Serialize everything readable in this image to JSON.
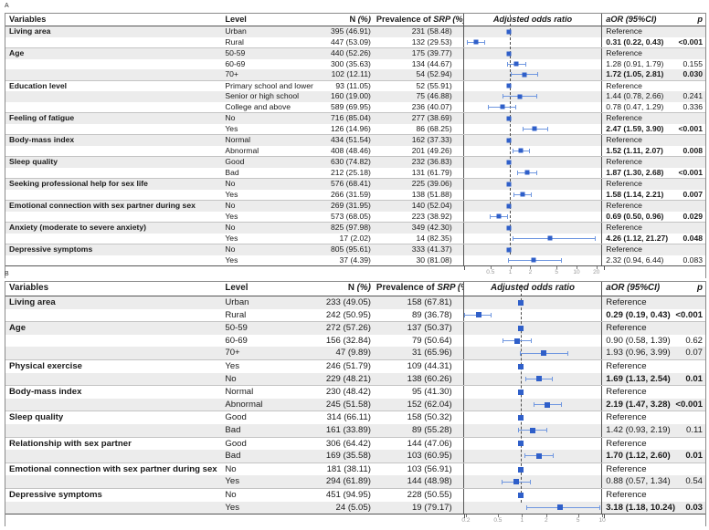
{
  "figure": {
    "panel_a_label": "A",
    "panel_b_label": "B"
  },
  "colors": {
    "marker": "#2f5fc9",
    "ci_line": "#6f97e0",
    "row_shade": "#ececec",
    "reference_line": "#4d4d4d",
    "tick_text": "#999999"
  },
  "headers": {
    "variables": [
      {
        "t": "Variables"
      }
    ],
    "level": [
      {
        "t": "Level"
      }
    ],
    "n": [
      {
        "t": "N "
      },
      {
        "t": "(%)",
        "i": true
      }
    ],
    "prevalence": [
      {
        "t": "Prevalence of "
      },
      {
        "t": "SRP (%)",
        "i": true
      }
    ],
    "plot": [
      {
        "t": "Adjusted odds ratio",
        "i": true
      }
    ],
    "aor": [
      {
        "t": "aOR (95%CI)",
        "i": true
      }
    ],
    "p": [
      {
        "t": "p",
        "i": true
      }
    ]
  },
  "chart_data": [
    {
      "type": "forest",
      "panel": "A",
      "title": "Adjusted odds ratio",
      "axis": {
        "scale": "log",
        "min": 0.2,
        "max": 26,
        "ref_line": 1,
        "ticks": [
          {
            "label": "0.5",
            "v": 0.5
          },
          {
            "label": "1",
            "v": 1
          },
          {
            "label": "2",
            "v": 2
          },
          {
            "label": "5",
            "v": 5
          },
          {
            "label": "10",
            "v": 10
          },
          {
            "label": "20",
            "v": 20
          }
        ]
      },
      "rows": [
        {
          "variable": "Living area",
          "level": "Urban",
          "n": "395 (46.91)",
          "prev": "231 (58.48)",
          "aor": "Reference",
          "p": "",
          "ref": true,
          "or": 1,
          "lo": null,
          "hi": null,
          "sig": false
        },
        {
          "variable": "",
          "level": "Rural",
          "n": "447 (53.09)",
          "prev": "132 (29.53)",
          "aor": "0.31 (0.22, 0.43)",
          "p": "<0.001",
          "ref": false,
          "or": 0.31,
          "lo": 0.22,
          "hi": 0.43,
          "sig": true
        },
        {
          "variable": "Age",
          "level": "50-59",
          "n": "440 (52.26)",
          "prev": "175 (39.77)",
          "aor": "Reference",
          "p": "",
          "ref": true,
          "or": 1,
          "lo": null,
          "hi": null,
          "sig": false
        },
        {
          "variable": "",
          "level": "60-69",
          "n": "300 (35.63)",
          "prev": "134 (44.67)",
          "aor": "1.28 (0.91, 1.79)",
          "p": "0.155",
          "ref": false,
          "or": 1.28,
          "lo": 0.91,
          "hi": 1.79,
          "sig": false
        },
        {
          "variable": "",
          "level": "70+",
          "n": "102 (12.11)",
          "prev": "54 (52.94)",
          "aor": "1.72 (1.05, 2.81)",
          "p": "0.030",
          "ref": false,
          "or": 1.72,
          "lo": 1.05,
          "hi": 2.81,
          "sig": true
        },
        {
          "variable": "Education level",
          "level": "Primary school and lower",
          "n": "93 (11.05)",
          "prev": "52 (55.91)",
          "aor": "Reference",
          "p": "",
          "ref": true,
          "or": 1,
          "lo": null,
          "hi": null,
          "sig": false
        },
        {
          "variable": "",
          "level": "Senior or high school",
          "n": "160 (19.00)",
          "prev": "75 (46.88)",
          "aor": "1.44 (0.78, 2.66)",
          "p": "0.241",
          "ref": false,
          "or": 1.44,
          "lo": 0.78,
          "hi": 2.66,
          "sig": false
        },
        {
          "variable": "",
          "level": "College and above",
          "n": "589 (69.95)",
          "prev": "236 (40.07)",
          "aor": "0.78 (0.47, 1.29)",
          "p": "0.336",
          "ref": false,
          "or": 0.78,
          "lo": 0.47,
          "hi": 1.29,
          "sig": false
        },
        {
          "variable": "Feeling of fatigue",
          "level": "No",
          "n": "716 (85.04)",
          "prev": "277 (38.69)",
          "aor": "Reference",
          "p": "",
          "ref": true,
          "or": 1,
          "lo": null,
          "hi": null,
          "sig": false
        },
        {
          "variable": "",
          "level": "Yes",
          "n": "126 (14.96)",
          "prev": "86 (68.25)",
          "aor": "2.47 (1.59, 3.90)",
          "p": "<0.001",
          "ref": false,
          "or": 2.47,
          "lo": 1.59,
          "hi": 3.9,
          "sig": true
        },
        {
          "variable": "Body-mass index",
          "level": "Normal",
          "n": "434 (51.54)",
          "prev": "162 (37.33)",
          "aor": "Reference",
          "p": "",
          "ref": true,
          "or": 1,
          "lo": null,
          "hi": null,
          "sig": false
        },
        {
          "variable": "",
          "level": "Abnormal",
          "n": "408 (48.46)",
          "prev": "201 (49.26)",
          "aor": "1.52 (1.11, 2.07)",
          "p": "0.008",
          "ref": false,
          "or": 1.52,
          "lo": 1.11,
          "hi": 2.07,
          "sig": true
        },
        {
          "variable": "Sleep quality",
          "level": "Good",
          "n": "630 (74.82)",
          "prev": "232 (36.83)",
          "aor": "Reference",
          "p": "",
          "ref": true,
          "or": 1,
          "lo": null,
          "hi": null,
          "sig": false
        },
        {
          "variable": "",
          "level": "Bad",
          "n": "212 (25.18)",
          "prev": "131 (61.79)",
          "aor": "1.87 (1.30, 2.68)",
          "p": "<0.001",
          "ref": false,
          "or": 1.87,
          "lo": 1.3,
          "hi": 2.68,
          "sig": true
        },
        {
          "variable": "Seeking professional help for sex life",
          "level": "No",
          "n": "576 (68.41)",
          "prev": "225 (39.06)",
          "aor": "Reference",
          "p": "",
          "ref": true,
          "or": 1,
          "lo": null,
          "hi": null,
          "sig": false
        },
        {
          "variable": "",
          "level": "Yes",
          "n": "266 (31.59)",
          "prev": "138 (51.88)",
          "aor": "1.58 (1.14, 2.21)",
          "p": "0.007",
          "ref": false,
          "or": 1.58,
          "lo": 1.14,
          "hi": 2.21,
          "sig": true
        },
        {
          "variable": "Emotional connection with sex partner during sex",
          "level": "No",
          "n": "269 (31.95)",
          "prev": "140 (52.04)",
          "aor": "Reference",
          "p": "",
          "ref": true,
          "or": 1,
          "lo": null,
          "hi": null,
          "sig": false
        },
        {
          "variable": "",
          "level": "Yes",
          "n": "573 (68.05)",
          "prev": "223 (38.92)",
          "aor": "0.69 (0.50, 0.96)",
          "p": "0.029",
          "ref": false,
          "or": 0.69,
          "lo": 0.5,
          "hi": 0.96,
          "sig": true
        },
        {
          "variable": "Anxiety (moderate to severe anxiety)",
          "level": "No",
          "n": "825 (97.98)",
          "prev": "349 (42.30)",
          "aor": "Reference",
          "p": "",
          "ref": true,
          "or": 1,
          "lo": null,
          "hi": null,
          "sig": false
        },
        {
          "variable": "",
          "level": "Yes",
          "n": "17 (2.02)",
          "prev": "14 (82.35)",
          "aor": "4.26 (1.12, 21.27)",
          "p": "0.048",
          "ref": false,
          "or": 4.26,
          "lo": 1.12,
          "hi": 21.27,
          "sig": true
        },
        {
          "variable": "Depressive symptoms",
          "level": "No",
          "n": "805 (95.61)",
          "prev": "333 (41.37)",
          "aor": "Reference",
          "p": "",
          "ref": true,
          "or": 1,
          "lo": null,
          "hi": null,
          "sig": false
        },
        {
          "variable": "",
          "level": "Yes",
          "n": "37 (4.39)",
          "prev": "30 (81.08)",
          "aor": "2.32 (0.94, 6.44)",
          "p": "0.083",
          "ref": false,
          "or": 2.32,
          "lo": 0.94,
          "hi": 6.44,
          "sig": false
        }
      ]
    },
    {
      "type": "forest",
      "panel": "B",
      "title": "Adjusted odds ratio",
      "axis": {
        "scale": "log",
        "min": 0.19,
        "max": 10.5,
        "ref_line": 1,
        "ticks": [
          {
            "label": "0.2",
            "v": 0.2
          },
          {
            "label": "0.5",
            "v": 0.5
          },
          {
            "label": "1",
            "v": 1
          },
          {
            "label": "2",
            "v": 2
          },
          {
            "label": "5",
            "v": 5
          },
          {
            "label": "10",
            "v": 10
          }
        ]
      },
      "rows": [
        {
          "variable": "Living area",
          "level": "Urban",
          "n": "233 (49.05)",
          "prev": "158 (67.81)",
          "aor": "Reference",
          "p": "",
          "ref": true,
          "or": 1,
          "lo": null,
          "hi": null,
          "sig": false
        },
        {
          "variable": "",
          "level": "Rural",
          "n": "242 (50.95)",
          "prev": "89 (36.78)",
          "aor": "0.29 (0.19, 0.43)",
          "p": "<0.001",
          "ref": false,
          "or": 0.29,
          "lo": 0.19,
          "hi": 0.43,
          "sig": true
        },
        {
          "variable": "Age",
          "level": "50-59",
          "n": "272 (57.26)",
          "prev": "137 (50.37)",
          "aor": "Reference",
          "p": "",
          "ref": true,
          "or": 1,
          "lo": null,
          "hi": null,
          "sig": false
        },
        {
          "variable": "",
          "level": "60-69",
          "n": "156 (32.84)",
          "prev": "79 (50.64)",
          "aor": "0.90 (0.58, 1.39)",
          "p": "0.62",
          "ref": false,
          "or": 0.9,
          "lo": 0.58,
          "hi": 1.39,
          "sig": false
        },
        {
          "variable": "",
          "level": "70+",
          "n": "47 (9.89)",
          "prev": "31 (65.96)",
          "aor": "1.93 (0.96, 3.99)",
          "p": "0.07",
          "ref": false,
          "or": 1.93,
          "lo": 0.96,
          "hi": 3.99,
          "sig": false
        },
        {
          "variable": "Physical exercise",
          "level": "Yes",
          "n": "246 (51.79)",
          "prev": "109 (44.31)",
          "aor": "Reference",
          "p": "",
          "ref": true,
          "or": 1,
          "lo": null,
          "hi": null,
          "sig": false
        },
        {
          "variable": "",
          "level": "No",
          "n": "229 (48.21)",
          "prev": "138 (60.26)",
          "aor": "1.69 (1.13, 2.54)",
          "p": "0.01",
          "ref": false,
          "or": 1.69,
          "lo": 1.13,
          "hi": 2.54,
          "sig": true
        },
        {
          "variable": "Body-mass index",
          "level": "Normal",
          "n": "230 (48.42)",
          "prev": "95 (41.30)",
          "aor": "Reference",
          "p": "",
          "ref": true,
          "or": 1,
          "lo": null,
          "hi": null,
          "sig": false
        },
        {
          "variable": "",
          "level": "Abnormal",
          "n": "245 (51.58)",
          "prev": "152 (62.04)",
          "aor": "2.19 (1.47, 3.28)",
          "p": "<0.001",
          "ref": false,
          "or": 2.19,
          "lo": 1.47,
          "hi": 3.28,
          "sig": true
        },
        {
          "variable": "Sleep quality",
          "level": "Good",
          "n": "314 (66.11)",
          "prev": "158 (50.32)",
          "aor": "Reference",
          "p": "",
          "ref": true,
          "or": 1,
          "lo": null,
          "hi": null,
          "sig": false
        },
        {
          "variable": "",
          "level": "Bad",
          "n": "161 (33.89)",
          "prev": "89 (55.28)",
          "aor": "1.42 (0.93, 2.19)",
          "p": "0.11",
          "ref": false,
          "or": 1.42,
          "lo": 0.93,
          "hi": 2.19,
          "sig": false
        },
        {
          "variable": "Relationship with sex partner",
          "level": "Good",
          "n": "306 (64.42)",
          "prev": "144 (47.06)",
          "aor": "Reference",
          "p": "",
          "ref": true,
          "or": 1,
          "lo": null,
          "hi": null,
          "sig": false
        },
        {
          "variable": "",
          "level": "Bad",
          "n": "169 (35.58)",
          "prev": "103 (60.95)",
          "aor": "1.70 (1.12, 2.60)",
          "p": "0.01",
          "ref": false,
          "or": 1.7,
          "lo": 1.12,
          "hi": 2.6,
          "sig": true
        },
        {
          "variable": "Emotional connection with sex partner during sex",
          "level": "No",
          "n": "181 (38.11)",
          "prev": "103 (56.91)",
          "aor": "Reference",
          "p": "",
          "ref": true,
          "or": 1,
          "lo": null,
          "hi": null,
          "sig": false
        },
        {
          "variable": "",
          "level": "Yes",
          "n": "294 (61.89)",
          "prev": "144 (48.98)",
          "aor": "0.88 (0.57, 1.34)",
          "p": "0.54",
          "ref": false,
          "or": 0.88,
          "lo": 0.57,
          "hi": 1.34,
          "sig": false
        },
        {
          "variable": "Depressive symptoms",
          "level": "No",
          "n": "451 (94.95)",
          "prev": "228 (50.55)",
          "aor": "Reference",
          "p": "",
          "ref": true,
          "or": 1,
          "lo": null,
          "hi": null,
          "sig": false
        },
        {
          "variable": "",
          "level": "Yes",
          "n": "24 (5.05)",
          "prev": "19 (79.17)",
          "aor": "3.18 (1.18, 10.24)",
          "p": "0.03",
          "ref": false,
          "or": 3.18,
          "lo": 1.18,
          "hi": 10.24,
          "sig": true
        }
      ]
    }
  ]
}
